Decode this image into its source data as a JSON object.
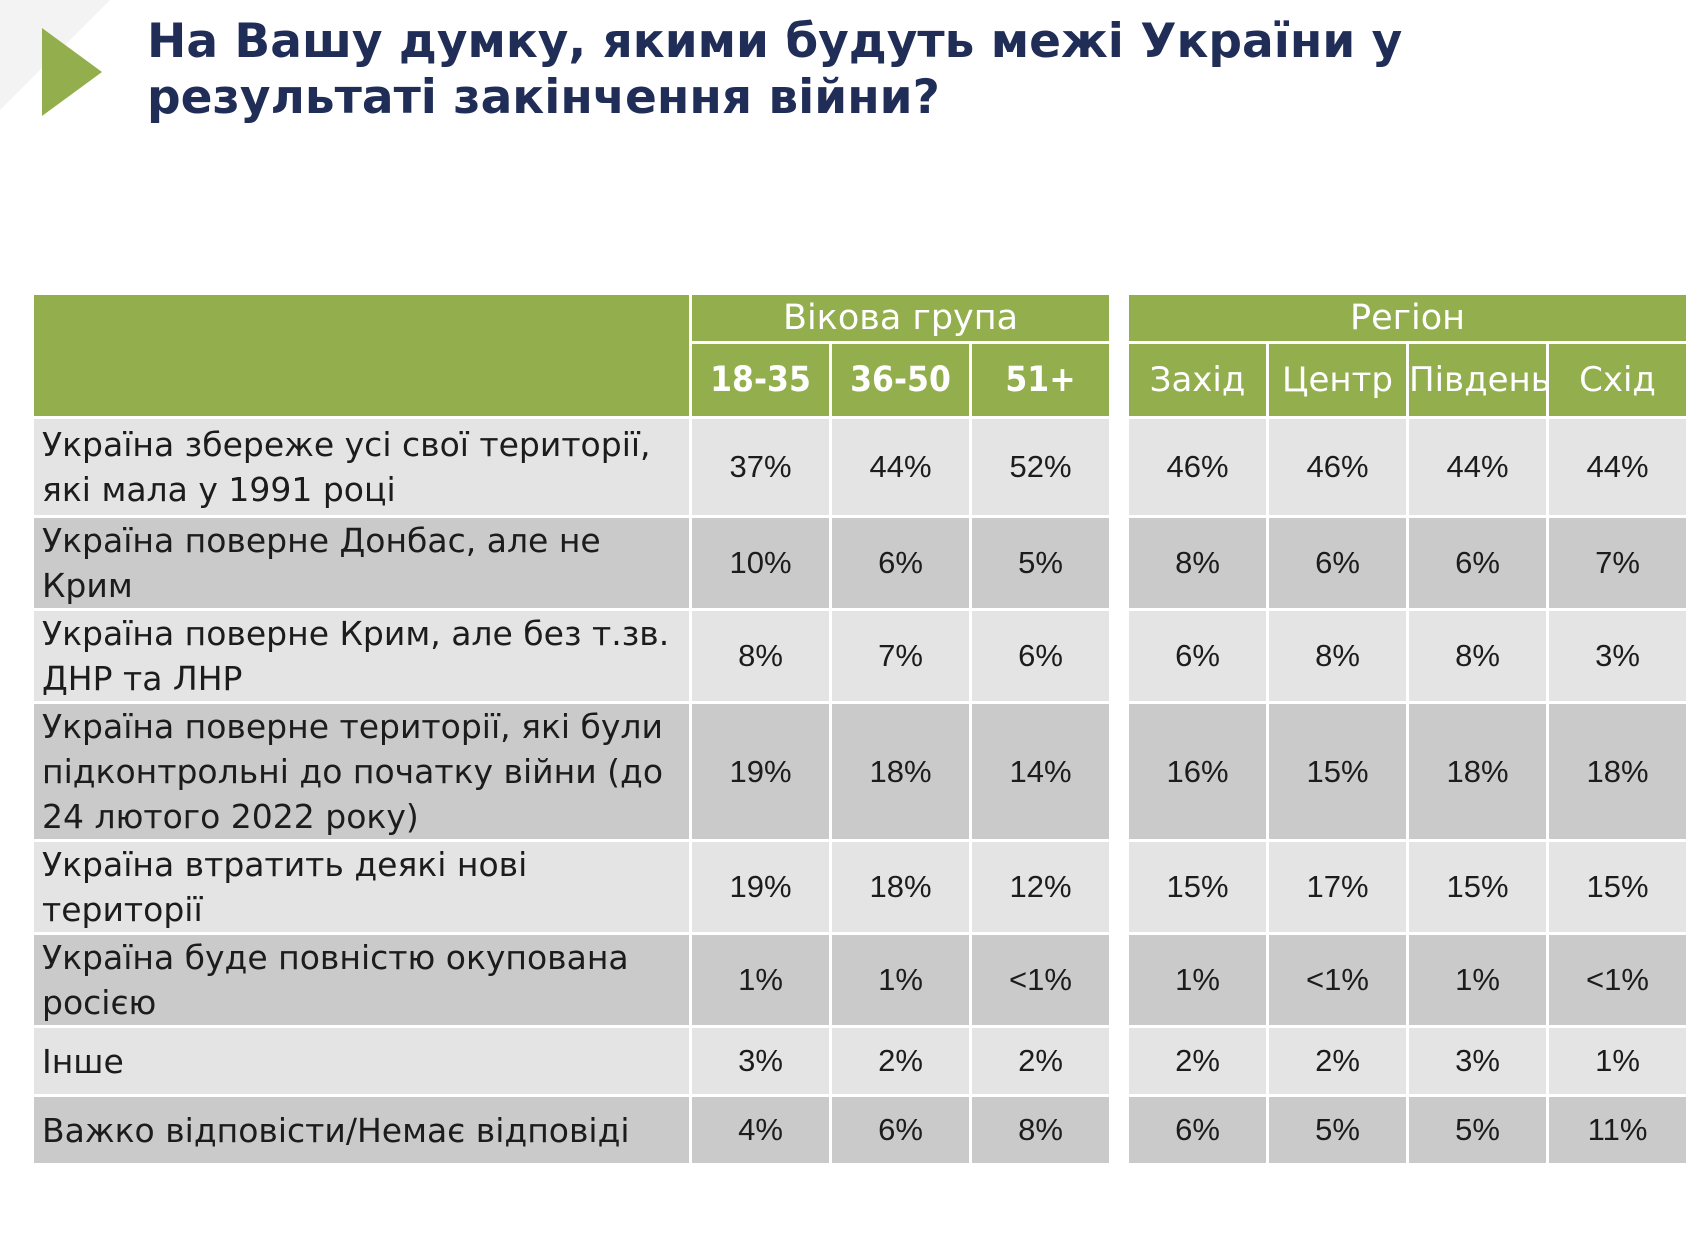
{
  "title": "На Вашу думку, якими будуть межі України у результаті закінчення війни?",
  "colors": {
    "accent": "#93ae4c",
    "title": "#1f2d57",
    "row_light": "#e4e4e4",
    "row_dark": "#cacaca"
  },
  "icons": {
    "header_arrow": "play-arrow-icon"
  },
  "header": {
    "age_group": "Вікова група",
    "region": "Регіон",
    "age_columns": [
      "18-35",
      "36-50",
      "51+"
    ],
    "region_columns": [
      "Захід",
      "Центр",
      "Південь",
      "Схід"
    ]
  },
  "chart_data": {
    "type": "table",
    "title": "На Вашу думку, якими будуть межі України у результаті закінчення війни?",
    "column_groups": [
      {
        "name": "Вікова група",
        "columns": [
          "18-35",
          "36-50",
          "51+"
        ]
      },
      {
        "name": "Регіон",
        "columns": [
          "Захід",
          "Центр",
          "Південь",
          "Схід"
        ]
      }
    ],
    "rows": [
      {
        "label": "Україна збереже усі свої території, які мала у 1991 році",
        "values": [
          "37%",
          "44%",
          "52%",
          "46%",
          "46%",
          "44%",
          "44%"
        ]
      },
      {
        "label": "Україна поверне Донбас, але не Крим",
        "values": [
          "10%",
          "6%",
          "5%",
          "8%",
          "6%",
          "6%",
          "7%"
        ]
      },
      {
        "label": "Україна поверне Крим, але без т.зв. ДНР та ЛНР",
        "values": [
          "8%",
          "7%",
          "6%",
          "6%",
          "8%",
          "8%",
          "3%"
        ]
      },
      {
        "label": "Україна поверне території, які були підконтрольні до початку війни (до 24 лютого 2022 року)",
        "values": [
          "19%",
          "18%",
          "14%",
          "16%",
          "15%",
          "18%",
          "18%"
        ]
      },
      {
        "label": "Україна втратить деякі нові території",
        "values": [
          "19%",
          "18%",
          "12%",
          "15%",
          "17%",
          "15%",
          "15%"
        ]
      },
      {
        "label": "Україна буде повністю окупована росією",
        "values": [
          "1%",
          "1%",
          "<1%",
          "1%",
          "<1%",
          "1%",
          "<1%"
        ]
      },
      {
        "label": "Інше",
        "values": [
          "3%",
          "2%",
          "2%",
          "2%",
          "2%",
          "3%",
          "1%"
        ]
      },
      {
        "label": "Важко відповісти/Немає відповіді",
        "values": [
          "4%",
          "6%",
          "8%",
          "6%",
          "5%",
          "5%",
          "11%"
        ]
      }
    ]
  }
}
